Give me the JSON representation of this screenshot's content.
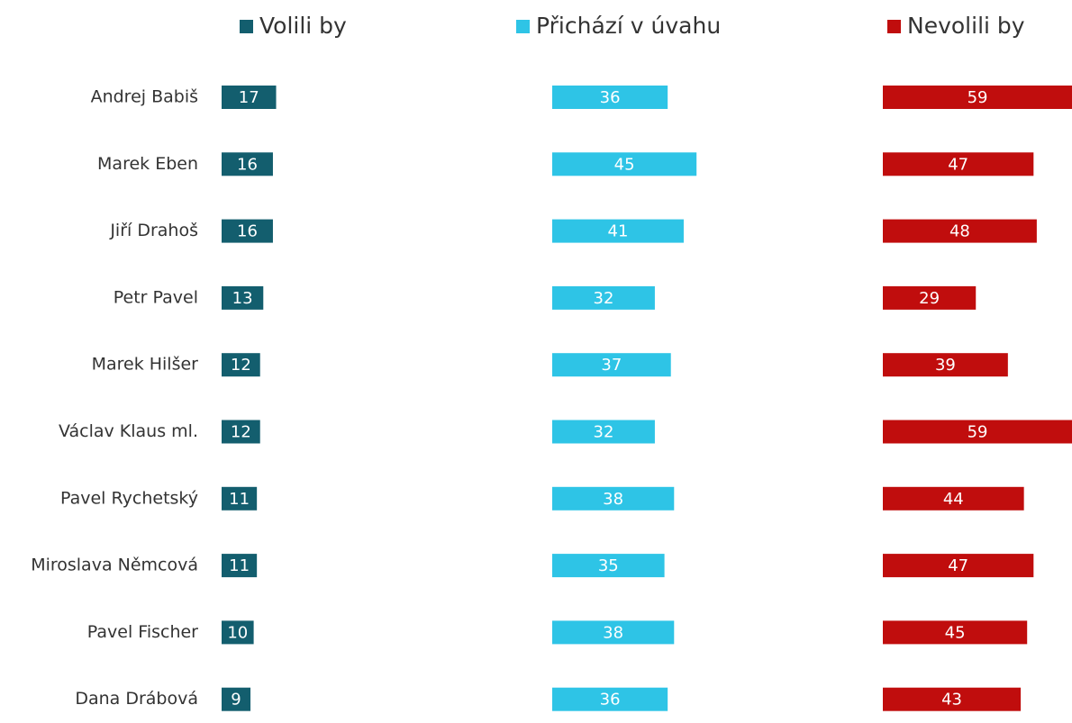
{
  "chart_data": {
    "type": "bar",
    "categories": [
      "Andrej Babiš",
      "Marek Eben",
      "Jiří Drahoš",
      "Petr Pavel",
      "Marek Hilšer",
      "Václav Klaus ml.",
      "Pavel Rychetský",
      "Miroslava Němcová",
      "Pavel Fischer",
      "Dana Drábová"
    ],
    "series": [
      {
        "name": "Volili by",
        "color": "#135e6e",
        "values": [
          17,
          16,
          16,
          13,
          12,
          12,
          11,
          11,
          10,
          9
        ]
      },
      {
        "name": "Přichází v úvahu",
        "color": "#2ec4e6",
        "values": [
          36,
          45,
          41,
          32,
          37,
          32,
          38,
          35,
          38,
          36
        ]
      },
      {
        "name": "Nevolili by",
        "color": "#c00d0d",
        "values": [
          59,
          47,
          48,
          29,
          39,
          59,
          44,
          47,
          45,
          43
        ]
      }
    ]
  }
}
